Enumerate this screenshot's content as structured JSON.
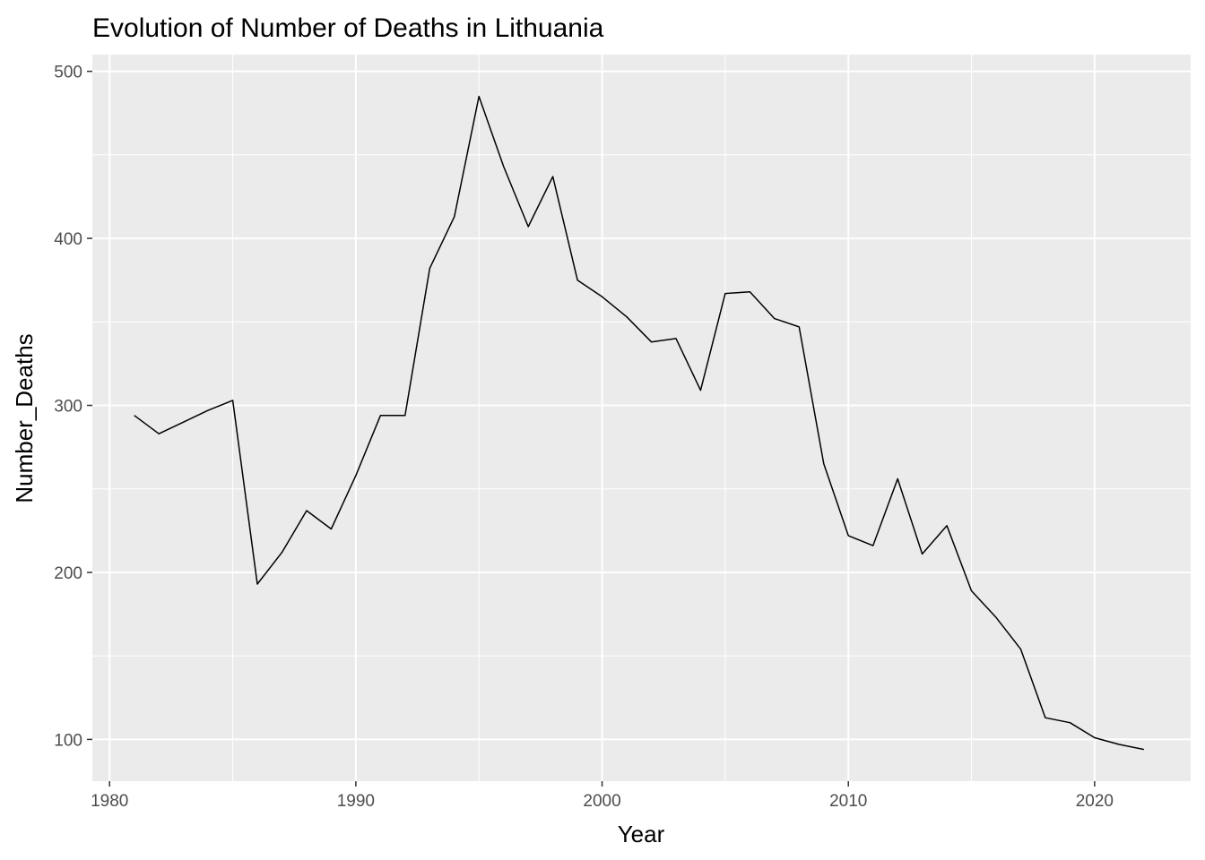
{
  "chart_data": {
    "type": "line",
    "title": "Evolution of Number of Deaths in Lithuania",
    "xlabel": "Year",
    "ylabel": "Number_Deaths",
    "xlim": [
      1979.3,
      2023.9
    ],
    "ylim": [
      75,
      510
    ],
    "x_ticks": [
      1980,
      1990,
      2000,
      2010,
      2020
    ],
    "x_minor": [
      1985,
      1995,
      2005,
      2015
    ],
    "y_ticks": [
      100,
      200,
      300,
      400,
      500
    ],
    "y_minor": [
      150,
      250,
      350,
      450
    ],
    "grid": true,
    "legend": "none",
    "colors": {
      "panel": "#ebebeb",
      "grid": "#ffffff",
      "line": "#000000",
      "tick": "#333333"
    },
    "series": [
      {
        "x": [
          1981,
          1982,
          1983,
          1984,
          1985,
          1986,
          1987,
          1988,
          1989,
          1990,
          1991,
          1992,
          1993,
          1994,
          1995,
          1996,
          1997,
          1998,
          1999,
          2000,
          2001,
          2002,
          2003,
          2004,
          2005,
          2006,
          2007,
          2008,
          2009,
          2010,
          2011,
          2012,
          2013,
          2014,
          2015,
          2016,
          2017,
          2018,
          2019,
          2020,
          2021,
          2022
        ],
        "y": [
          294,
          283,
          290,
          297,
          303,
          193,
          212,
          237,
          226,
          258,
          294,
          294,
          382,
          413,
          485,
          443,
          407,
          437,
          375,
          365,
          353,
          338,
          340,
          309,
          367,
          368,
          352,
          347,
          265,
          222,
          216,
          256,
          211,
          228,
          189,
          173,
          154,
          113,
          110,
          101,
          97,
          94
        ]
      }
    ]
  }
}
